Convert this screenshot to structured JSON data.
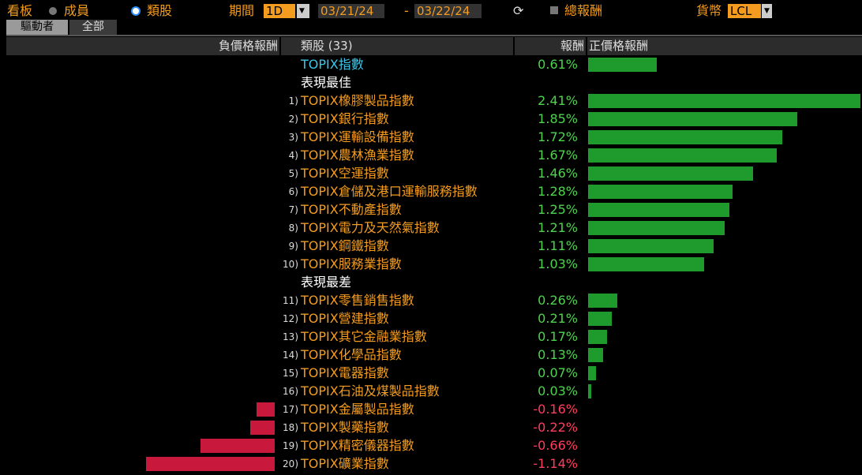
{
  "toolbar": {
    "view_label": "看板",
    "option_members": "成員",
    "option_sectors": "類股",
    "period_label": "期間",
    "period": "1D",
    "start_date": "03/21/24",
    "date_separator": "-",
    "end_date": "03/22/24",
    "total_return": "總報酬",
    "currency_label": "貨幣",
    "currency": "LCL"
  },
  "tabs": [
    "驅動者",
    "全部"
  ],
  "header": {
    "negative": "負價格報酬",
    "sectors": "類股 (33)",
    "return": "報酬",
    "positive": "正價格報酬"
  },
  "benchmark": {
    "name": "TOPIX指數",
    "value": 0.61,
    "value_label": "0.61%"
  },
  "groups": [
    {
      "title": "表現最佳",
      "rows": [
        {
          "rank": "1)",
          "name": "TOPIX橡膠製品指數",
          "value": 2.41,
          "value_label": "2.41%"
        },
        {
          "rank": "2)",
          "name": "TOPIX銀行指數",
          "value": 1.85,
          "value_label": "1.85%"
        },
        {
          "rank": "3)",
          "name": "TOPIX運輸設備指數",
          "value": 1.72,
          "value_label": "1.72%"
        },
        {
          "rank": "4)",
          "name": "TOPIX農林漁業指數",
          "value": 1.67,
          "value_label": "1.67%"
        },
        {
          "rank": "5)",
          "name": "TOPIX空運指數",
          "value": 1.46,
          "value_label": "1.46%"
        },
        {
          "rank": "6)",
          "name": "TOPIX倉儲及港口運輸服務指數",
          "value": 1.28,
          "value_label": "1.28%"
        },
        {
          "rank": "7)",
          "name": "TOPIX不動產指數",
          "value": 1.25,
          "value_label": "1.25%"
        },
        {
          "rank": "8)",
          "name": "TOPIX電力及天然氣指數",
          "value": 1.21,
          "value_label": "1.21%"
        },
        {
          "rank": "9)",
          "name": "TOPIX鋼鐵指數",
          "value": 1.11,
          "value_label": "1.11%"
        },
        {
          "rank": "10)",
          "name": "TOPIX服務業指數",
          "value": 1.03,
          "value_label": "1.03%"
        }
      ]
    },
    {
      "title": "表現最差",
      "rows": [
        {
          "rank": "11)",
          "name": "TOPIX零售銷售指數",
          "value": 0.26,
          "value_label": "0.26%"
        },
        {
          "rank": "12)",
          "name": "TOPIX營建指數",
          "value": 0.21,
          "value_label": "0.21%"
        },
        {
          "rank": "13)",
          "name": "TOPIX其它金融業指數",
          "value": 0.17,
          "value_label": "0.17%"
        },
        {
          "rank": "14)",
          "name": "TOPIX化學品指數",
          "value": 0.13,
          "value_label": "0.13%"
        },
        {
          "rank": "15)",
          "name": "TOPIX電器指數",
          "value": 0.07,
          "value_label": "0.07%"
        },
        {
          "rank": "16)",
          "name": "TOPIX石油及煤製品指數",
          "value": 0.03,
          "value_label": "0.03%"
        },
        {
          "rank": "17)",
          "name": "TOPIX金屬製品指數",
          "value": -0.16,
          "value_label": "-0.16%"
        },
        {
          "rank": "18)",
          "name": "TOPIX製藥指數",
          "value": -0.22,
          "value_label": "-0.22%"
        },
        {
          "rank": "19)",
          "name": "TOPIX精密儀器指數",
          "value": -0.66,
          "value_label": "-0.66%"
        },
        {
          "rank": "20)",
          "name": "TOPIX礦業指數",
          "value": -1.14,
          "value_label": "-1.14%"
        }
      ]
    }
  ]
}
